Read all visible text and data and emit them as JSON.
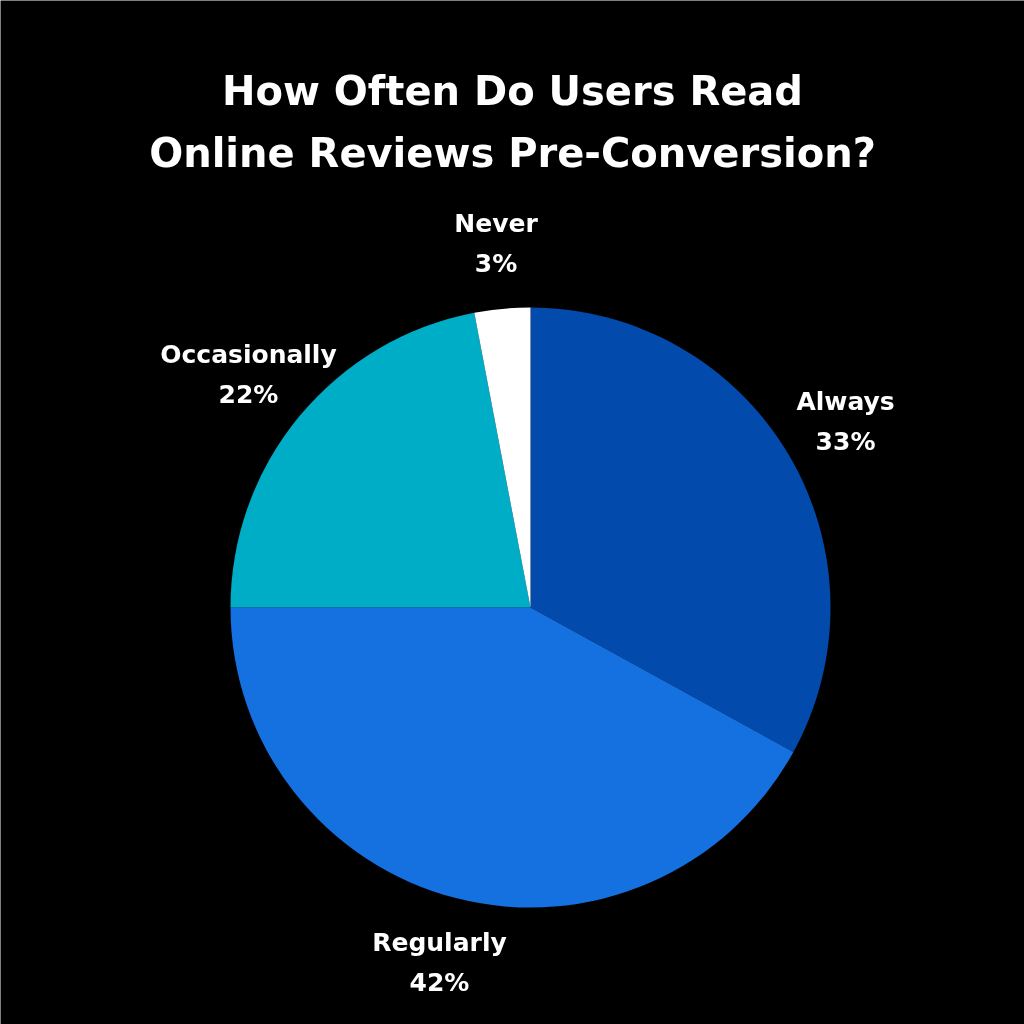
{
  "chart_data": {
    "type": "pie",
    "title": "How Often Do Users Read Online Reviews Pre-Conversion?",
    "categories": [
      "Always",
      "Regularly",
      "Occasionally",
      "Never"
    ],
    "values": [
      33,
      42,
      22,
      3
    ],
    "colors": [
      "#034aad",
      "#1570e0",
      "#00adc6",
      "#ffffff"
    ],
    "value_labels": [
      "33%",
      "42%",
      "22%",
      "3%"
    ]
  }
}
